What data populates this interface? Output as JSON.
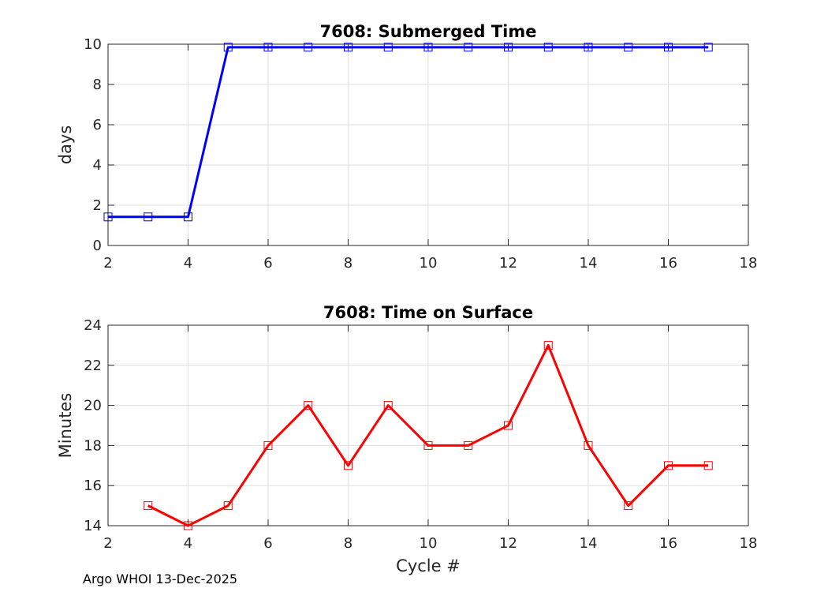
{
  "chart_data": [
    {
      "type": "line",
      "title": "7608: Submerged Time",
      "xlabel": "",
      "ylabel": "days",
      "xlim": [
        2,
        18
      ],
      "ylim": [
        0,
        10
      ],
      "xticks": [
        2,
        4,
        6,
        8,
        10,
        12,
        14,
        16,
        18
      ],
      "yticks": [
        0,
        2,
        4,
        6,
        8,
        10
      ],
      "grid": true,
      "color": "#0000ff",
      "marker": "square",
      "x": [
        2,
        3,
        4,
        5,
        6,
        7,
        8,
        9,
        10,
        11,
        12,
        13,
        14,
        15,
        16,
        17
      ],
      "values": [
        1.42,
        1.42,
        1.42,
        9.85,
        9.85,
        9.85,
        9.85,
        9.85,
        9.85,
        9.85,
        9.85,
        9.85,
        9.85,
        9.85,
        9.85,
        9.85
      ]
    },
    {
      "type": "line",
      "title": "7608: Time on Surface",
      "xlabel": "Cycle #",
      "ylabel": "Minutes",
      "xlim": [
        2,
        18
      ],
      "ylim": [
        14,
        24
      ],
      "xticks": [
        2,
        4,
        6,
        8,
        10,
        12,
        14,
        16,
        18
      ],
      "yticks": [
        14,
        16,
        18,
        20,
        22,
        24
      ],
      "grid": true,
      "color": "#ff0000",
      "marker": "square",
      "x": [
        3,
        4,
        5,
        6,
        7,
        8,
        9,
        10,
        11,
        12,
        13,
        14,
        15,
        16,
        17
      ],
      "values": [
        15,
        14,
        15,
        18,
        20,
        17,
        20,
        18,
        18,
        19,
        23,
        18,
        15,
        17,
        17
      ]
    }
  ],
  "footer": "Argo WHOI 13-Dec-2025"
}
